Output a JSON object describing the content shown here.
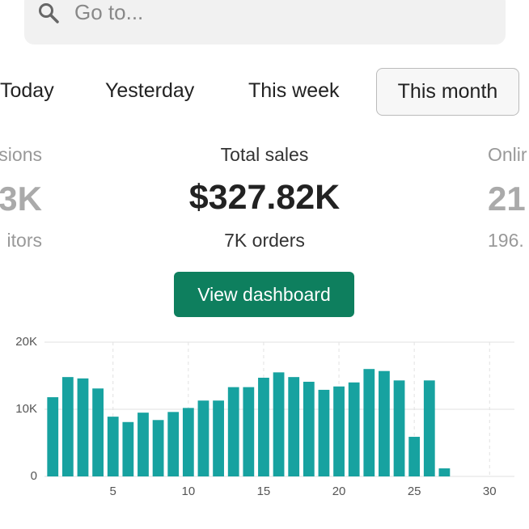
{
  "search": {
    "placeholder": "Go to..."
  },
  "tabs": [
    "Today",
    "Yesterday",
    "This week",
    "This month"
  ],
  "stats": [
    {
      "label": "sions",
      "value": "3K",
      "sub": "itors"
    },
    {
      "label": "Total sales",
      "value": "$327.82K",
      "sub": "7K orders"
    },
    {
      "label": "Onlir",
      "value": "21",
      "sub": "196."
    }
  ],
  "button": "View dashboard",
  "chart_data": {
    "type": "bar",
    "color": "#17a2a0",
    "x": [
      1,
      2,
      3,
      4,
      5,
      6,
      7,
      8,
      9,
      10,
      11,
      12,
      13,
      14,
      15,
      16,
      17,
      18,
      19,
      20,
      21,
      22,
      23,
      24,
      25,
      26,
      27
    ],
    "values": [
      11800,
      14800,
      14600,
      13100,
      8900,
      8100,
      9500,
      8400,
      9600,
      10200,
      11300,
      11300,
      13300,
      13300,
      14700,
      15500,
      14800,
      14100,
      12900,
      13400,
      14000,
      16000,
      15700,
      14300,
      5900,
      14300,
      1200
    ],
    "xlim": [
      0.45,
      31.65
    ],
    "xticks": [
      5,
      10,
      15,
      20,
      25,
      30
    ],
    "ylim": [
      0,
      20000
    ],
    "yticks": [
      0,
      {
        "value": 10000,
        "label": "10K"
      },
      {
        "value": 20000,
        "label": "20K"
      }
    ],
    "grid": true
  }
}
